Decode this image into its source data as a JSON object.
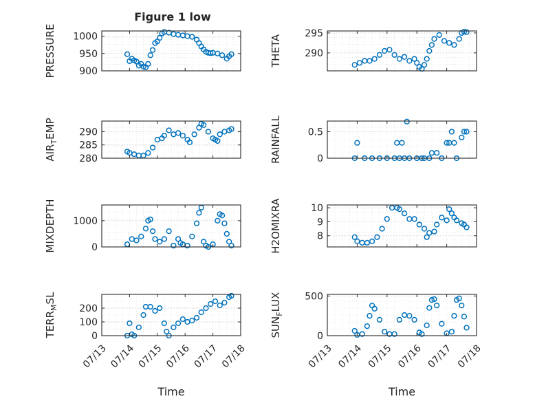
{
  "figure_title": "Figure 1 low",
  "chart_data": [
    {
      "type": "scatter",
      "panel": "PRESSURE",
      "ylabel": "PRESSURE",
      "ylim": [
        900,
        1015
      ],
      "yticks": [
        900,
        950,
        1000
      ],
      "xlim": [
        "07/13",
        "07/18"
      ],
      "x": [
        "07/13 22:00",
        "07/14 00:00",
        "07/14 02:00",
        "07/14 04:00",
        "07/14 06:00",
        "07/14 08:00",
        "07/14 10:00",
        "07/14 12:00",
        "07/14 14:00",
        "07/14 16:00",
        "07/14 18:00",
        "07/14 20:00",
        "07/14 22:00",
        "07/15 00:00",
        "07/15 02:00",
        "07/15 04:00",
        "07/15 06:00",
        "07/15 10:00",
        "07/15 14:00",
        "07/15 18:00",
        "07/15 22:00",
        "07/16 02:00",
        "07/16 06:00",
        "07/16 10:00",
        "07/16 12:00",
        "07/16 14:00",
        "07/16 16:00",
        "07/16 18:00",
        "07/16 20:00",
        "07/16 22:00",
        "07/17 00:00",
        "07/17 04:00",
        "07/17 08:00",
        "07/17 12:00",
        "07/17 14:00",
        "07/17 16:00"
      ],
      "y": [
        948,
        928,
        935,
        930,
        927,
        915,
        920,
        912,
        910,
        920,
        945,
        960,
        980,
        985,
        995,
        1008,
        1012,
        1010,
        1006,
        1004,
        1002,
        1000,
        998,
        990,
        980,
        970,
        962,
        955,
        952,
        951,
        952,
        950,
        945,
        935,
        942,
        948
      ]
    },
    {
      "type": "scatter",
      "panel": "THETA",
      "ylabel": "THETA",
      "ylim": [
        285.5,
        295.5
      ],
      "yticks": [
        290,
        295
      ],
      "xlim": [
        "07/13",
        "07/18"
      ],
      "x": [
        "07/13 22:00",
        "07/14 02:00",
        "07/14 06:00",
        "07/14 10:00",
        "07/14 14:00",
        "07/14 18:00",
        "07/14 22:00",
        "07/15 02:00",
        "07/15 06:00",
        "07/15 10:00",
        "07/15 14:00",
        "07/15 18:00",
        "07/15 22:00",
        "07/16 00:00",
        "07/16 02:00",
        "07/16 04:00",
        "07/16 06:00",
        "07/16 08:00",
        "07/16 10:00",
        "07/16 12:00",
        "07/16 14:00",
        "07/16 18:00",
        "07/16 22:00",
        "07/17 02:00",
        "07/17 06:00",
        "07/17 10:00",
        "07/17 12:00",
        "07/17 14:00",
        "07/17 16:00"
      ],
      "y": [
        287,
        287.5,
        288,
        288,
        288.5,
        289.5,
        290.5,
        290.8,
        289.5,
        288.5,
        289,
        288,
        288.5,
        287.5,
        286.5,
        286,
        287,
        288.5,
        290.5,
        292,
        293.5,
        294.5,
        293,
        292.5,
        292,
        293.5,
        295,
        295.3,
        295.2
      ]
    },
    {
      "type": "scatter",
      "panel": "AIR_TEMP",
      "ylabel": "AIR_TEMP",
      "ylim": [
        280,
        294
      ],
      "yticks": [
        280,
        285,
        290
      ],
      "xlim": [
        "07/13",
        "07/18"
      ],
      "x": [
        "07/13 22:00",
        "07/14 00:00",
        "07/14 04:00",
        "07/14 08:00",
        "07/14 12:00",
        "07/14 16:00",
        "07/14 20:00",
        "07/15 00:00",
        "07/15 04:00",
        "07/15 06:00",
        "07/15 10:00",
        "07/15 14:00",
        "07/15 18:00",
        "07/15 22:00",
        "07/16 02:00",
        "07/16 04:00",
        "07/16 08:00",
        "07/16 12:00",
        "07/16 14:00",
        "07/16 16:00",
        "07/16 20:00",
        "07/17 00:00",
        "07/17 02:00",
        "07/17 04:00",
        "07/17 06:00",
        "07/17 10:00",
        "07/17 14:00",
        "07/17 16:00"
      ],
      "y": [
        282.5,
        282,
        281.5,
        281,
        281,
        282,
        284,
        287,
        287.5,
        288.5,
        290.5,
        289,
        289.5,
        288.5,
        287,
        286,
        289,
        291.5,
        293,
        292.5,
        290,
        287.5,
        287,
        286.5,
        289,
        290,
        290.5,
        291
      ]
    },
    {
      "type": "scatter",
      "panel": "RAINFALL",
      "ylabel": "RAINFALL",
      "ylim": [
        0,
        0.7
      ],
      "yticks": [
        0,
        0.5
      ],
      "xlim": [
        "07/13",
        "07/18"
      ],
      "x": [
        "07/13 22:00",
        "07/14 00:00",
        "07/14 06:00",
        "07/14 12:00",
        "07/14 18:00",
        "07/15 00:00",
        "07/15 06:00",
        "07/15 08:00",
        "07/15 10:00",
        "07/15 12:00",
        "07/15 14:00",
        "07/15 16:00",
        "07/15 18:00",
        "07/16 00:00",
        "07/16 04:00",
        "07/16 06:00",
        "07/16 10:00",
        "07/16 12:00",
        "07/16 16:00",
        "07/16 20:00",
        "07/17 00:00",
        "07/17 02:00",
        "07/17 04:00",
        "07/17 06:00",
        "07/17 08:00",
        "07/17 12:00",
        "07/17 14:00",
        "07/17 16:00"
      ],
      "y": [
        0,
        0.29,
        0,
        0,
        0,
        0,
        0,
        0.29,
        0,
        0.29,
        0,
        0.69,
        0,
        0,
        0,
        0,
        0,
        0.1,
        0.1,
        0,
        0.29,
        0.29,
        0.5,
        0.29,
        0,
        0.39,
        0.5,
        0.5
      ]
    },
    {
      "type": "scatter",
      "panel": "MIXDEPTH",
      "ylabel": "MIXDEPTH",
      "ylim": [
        0,
        1600
      ],
      "yticks": [
        0,
        1000
      ],
      "xlim": [
        "07/13",
        "07/18"
      ],
      "x": [
        "07/13 22:00",
        "07/14 02:00",
        "07/14 06:00",
        "07/14 10:00",
        "07/14 14:00",
        "07/14 16:00",
        "07/14 18:00",
        "07/14 20:00",
        "07/14 22:00",
        "07/15 02:00",
        "07/15 06:00",
        "07/15 10:00",
        "07/15 14:00",
        "07/15 18:00",
        "07/15 20:00",
        "07/15 22:00",
        "07/16 02:00",
        "07/16 06:00",
        "07/16 10:00",
        "07/16 12:00",
        "07/16 14:00",
        "07/16 16:00",
        "07/16 18:00",
        "07/16 20:00",
        "07/17 00:00",
        "07/17 04:00",
        "07/17 06:00",
        "07/17 08:00",
        "07/17 10:00",
        "07/17 12:00",
        "07/17 14:00",
        "07/17 16:00"
      ],
      "y": [
        100,
        300,
        250,
        400,
        700,
        1000,
        1050,
        600,
        300,
        200,
        300,
        600,
        50,
        300,
        150,
        100,
        50,
        400,
        900,
        1300,
        1500,
        200,
        50,
        0,
        100,
        1000,
        1250,
        1200,
        900,
        500,
        200,
        50
      ]
    },
    {
      "type": "scatter",
      "panel": "H2OMIXRA",
      "ylabel": "H2OMIXRA",
      "ylim": [
        7.2,
        10.2
      ],
      "yticks": [
        8,
        9,
        10
      ],
      "xlim": [
        "07/13",
        "07/18"
      ],
      "x": [
        "07/13 22:00",
        "07/14 00:00",
        "07/14 04:00",
        "07/14 08:00",
        "07/14 12:00",
        "07/14 16:00",
        "07/14 20:00",
        "07/15 00:00",
        "07/15 04:00",
        "07/15 08:00",
        "07/15 10:00",
        "07/15 14:00",
        "07/15 18:00",
        "07/15 22:00",
        "07/16 02:00",
        "07/16 06:00",
        "07/16 08:00",
        "07/16 10:00",
        "07/16 14:00",
        "07/16 16:00",
        "07/16 20:00",
        "07/17 00:00",
        "07/17 02:00",
        "07/17 04:00",
        "07/17 06:00",
        "07/17 08:00",
        "07/17 12:00",
        "07/17 14:00",
        "07/17 16:00"
      ],
      "y": [
        7.9,
        7.6,
        7.5,
        7.5,
        7.6,
        7.9,
        8.5,
        9.2,
        10,
        10,
        9.9,
        9.6,
        9.2,
        9.2,
        8.8,
        8.5,
        7.9,
        8.2,
        8.3,
        8.8,
        9.3,
        9.1,
        9.9,
        9.6,
        9.3,
        9.1,
        8.9,
        8.8,
        8.6
      ]
    },
    {
      "type": "scatter",
      "panel": "TERR_MSL",
      "ylabel": "TERR_MSL",
      "ylim": [
        0,
        300
      ],
      "yticks": [
        0,
        100,
        200
      ],
      "xlim": [
        "07/13",
        "07/18"
      ],
      "x": [
        "07/13 22:00",
        "07/14 00:00",
        "07/14 02:00",
        "07/14 04:00",
        "07/14 08:00",
        "07/14 12:00",
        "07/14 14:00",
        "07/14 18:00",
        "07/14 22:00",
        "07/15 02:00",
        "07/15 06:00",
        "07/15 08:00",
        "07/15 10:00",
        "07/15 14:00",
        "07/15 18:00",
        "07/15 22:00",
        "07/16 02:00",
        "07/16 06:00",
        "07/16 10:00",
        "07/16 14:00",
        "07/16 18:00",
        "07/16 22:00",
        "07/17 02:00",
        "07/17 06:00",
        "07/17 10:00",
        "07/17 14:00",
        "07/17 16:00"
      ],
      "y": [
        0,
        90,
        10,
        0,
        60,
        150,
        210,
        210,
        180,
        200,
        90,
        30,
        0,
        60,
        90,
        120,
        100,
        110,
        130,
        170,
        200,
        230,
        250,
        220,
        240,
        280,
        290
      ]
    },
    {
      "type": "scatter",
      "panel": "SUN_FLUX",
      "ylabel": "SUN_FLUX",
      "ylim": [
        0,
        520
      ],
      "yticks": [
        0,
        500
      ],
      "xlim": [
        "07/13",
        "07/18"
      ],
      "x": [
        "07/13 22:00",
        "07/14 00:00",
        "07/14 04:00",
        "07/14 08:00",
        "07/14 10:00",
        "07/14 12:00",
        "07/14 14:00",
        "07/14 18:00",
        "07/14 22:00",
        "07/15 02:00",
        "07/15 06:00",
        "07/15 10:00",
        "07/15 14:00",
        "07/15 18:00",
        "07/15 22:00",
        "07/16 02:00",
        "07/16 04:00",
        "07/16 08:00",
        "07/16 10:00",
        "07/16 12:00",
        "07/16 14:00",
        "07/16 16:00",
        "07/16 20:00",
        "07/17 00:00",
        "07/17 04:00",
        "07/17 06:00",
        "07/17 08:00",
        "07/17 10:00",
        "07/17 12:00",
        "07/17 14:00",
        "07/17 16:00"
      ],
      "y": [
        60,
        10,
        20,
        120,
        250,
        380,
        340,
        200,
        50,
        20,
        20,
        200,
        260,
        250,
        200,
        40,
        20,
        130,
        350,
        450,
        460,
        380,
        150,
        30,
        50,
        250,
        450,
        470,
        380,
        240,
        100
      ]
    }
  ],
  "x_ticks": [
    "07/13",
    "07/14",
    "07/15",
    "07/16",
    "07/17",
    "07/18"
  ],
  "x_label": "Time",
  "style": {
    "marker_color": "#0072BD",
    "axis_color": "#262626",
    "grid_color": "#dcdcdc"
  }
}
